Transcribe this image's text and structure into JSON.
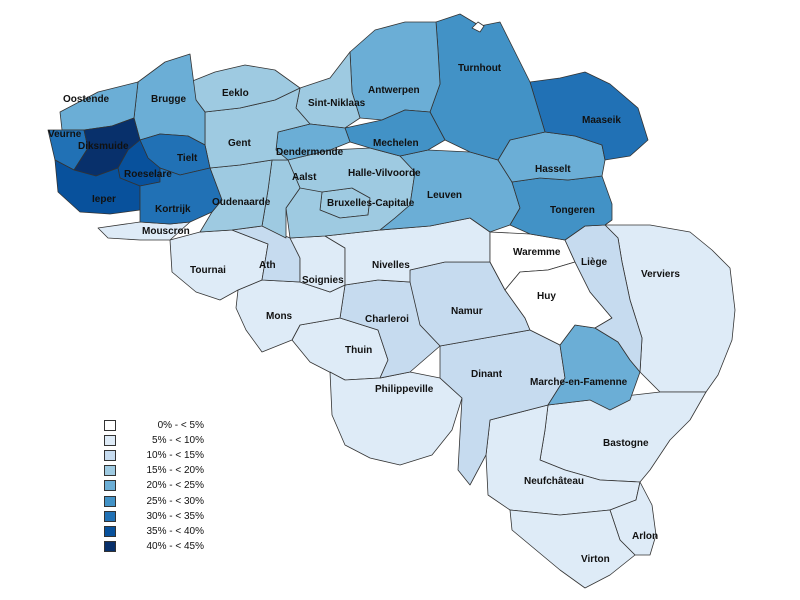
{
  "legend": [
    {
      "label": "0% - < 5%",
      "color": "#ffffff"
    },
    {
      "label": "5% - < 10%",
      "color": "#deebf7"
    },
    {
      "label": "10% - < 15%",
      "color": "#c6dbef"
    },
    {
      "label": "15% - < 20%",
      "color": "#9ecae1"
    },
    {
      "label": "20% - < 25%",
      "color": "#6baed6"
    },
    {
      "label": "25% - < 30%",
      "color": "#4292c6"
    },
    {
      "label": "30% - < 35%",
      "color": "#2171b5"
    },
    {
      "label": "35% - < 40%",
      "color": "#08519c"
    },
    {
      "label": "40% - < 45%",
      "color": "#08306b"
    }
  ],
  "districts": [
    {
      "name": "Oostende",
      "band": "20% - < 25%"
    },
    {
      "name": "Brugge",
      "band": "20% - < 25%"
    },
    {
      "name": "Eeklo",
      "band": "15% - < 20%"
    },
    {
      "name": "Sint-Niklaas",
      "band": "15% - < 20%"
    },
    {
      "name": "Antwerpen",
      "band": "20% - < 25%"
    },
    {
      "name": "Turnhout",
      "band": "25% - < 30%"
    },
    {
      "name": "Maaseik",
      "band": "30% - < 35%"
    },
    {
      "name": "Veurne",
      "band": "30% - < 35%"
    },
    {
      "name": "Diksmuide",
      "band": "40% - < 45%"
    },
    {
      "name": "Tielt",
      "band": "30% - < 35%"
    },
    {
      "name": "Roeselare",
      "band": "35% - < 40%"
    },
    {
      "name": "Ieper",
      "band": "35% - < 40%"
    },
    {
      "name": "Kortrijk",
      "band": "30% - < 35%"
    },
    {
      "name": "Mouscron",
      "band": "5% - < 10%"
    },
    {
      "name": "Gent",
      "band": "15% - < 20%"
    },
    {
      "name": "Oudenaarde",
      "band": "15% - < 20%"
    },
    {
      "name": "Dendermonde",
      "band": "20% - < 25%"
    },
    {
      "name": "Aalst",
      "band": "15% - < 20%"
    },
    {
      "name": "Mechelen",
      "band": "25% - < 30%"
    },
    {
      "name": "Halle-Vilvoorde",
      "band": "15% - < 20%"
    },
    {
      "name": "Bruxelles-Capitale",
      "band": "15% - < 20%"
    },
    {
      "name": "Leuven",
      "band": "20% - < 25%"
    },
    {
      "name": "Hasselt",
      "band": "20% - < 25%"
    },
    {
      "name": "Tongeren",
      "band": "25% - < 30%"
    },
    {
      "name": "Tournai",
      "band": "5% - < 10%"
    },
    {
      "name": "Ath",
      "band": "10% - < 15%"
    },
    {
      "name": "Soignies",
      "band": "5% - < 10%"
    },
    {
      "name": "Nivelles",
      "band": "5% - < 10%"
    },
    {
      "name": "Waremme",
      "band": "0% - < 5%"
    },
    {
      "name": "Liège",
      "band": "10% - < 15%"
    },
    {
      "name": "Verviers",
      "band": "5% - < 10%"
    },
    {
      "name": "Huy",
      "band": "0% - < 5%"
    },
    {
      "name": "Mons",
      "band": "5% - < 10%"
    },
    {
      "name": "Charleroi",
      "band": "10% - < 15%"
    },
    {
      "name": "Namur",
      "band": "10% - < 15%"
    },
    {
      "name": "Thuin",
      "band": "5% - < 10%"
    },
    {
      "name": "Philippeville",
      "band": "5% - < 10%"
    },
    {
      "name": "Dinant",
      "band": "10% - < 15%"
    },
    {
      "name": "Marche-en-Famenne",
      "band": "20% - < 25%"
    },
    {
      "name": "Bastogne",
      "band": "5% - < 10%"
    },
    {
      "name": "Neufchâteau",
      "band": "5% - < 10%"
    },
    {
      "name": "Arlon",
      "band": "5% - < 10%"
    },
    {
      "name": "Virton",
      "band": "5% - < 10%"
    }
  ]
}
